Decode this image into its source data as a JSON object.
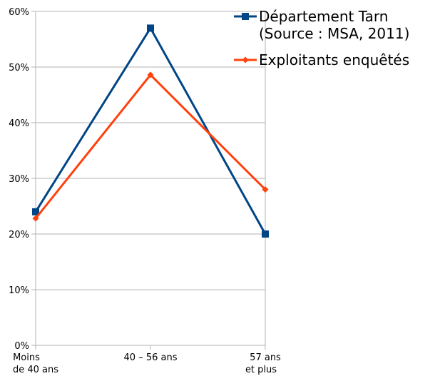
{
  "chart_data": {
    "type": "line",
    "categories": [
      [
        "Moins",
        "de 40 ans"
      ],
      [
        "40 – 56 ans"
      ],
      [
        "57 ans",
        "et plus"
      ]
    ],
    "series": [
      {
        "name": [
          "Département Tarn",
          "(Source : MSA, 2011)"
        ],
        "values": [
          24,
          57,
          20
        ],
        "color": "#004586",
        "marker": "square"
      },
      {
        "name": [
          "Exploitants enquêtés"
        ],
        "values": [
          22.8,
          48.6,
          28
        ],
        "color": "#ff420e",
        "marker": "diamond"
      }
    ],
    "yticks": [
      "0%",
      "10%",
      "20%",
      "30%",
      "40%",
      "50%",
      "60%"
    ],
    "ylim": [
      0,
      60
    ],
    "grid": true,
    "legend_position": "right",
    "axis_color": "#b3b3b3"
  }
}
